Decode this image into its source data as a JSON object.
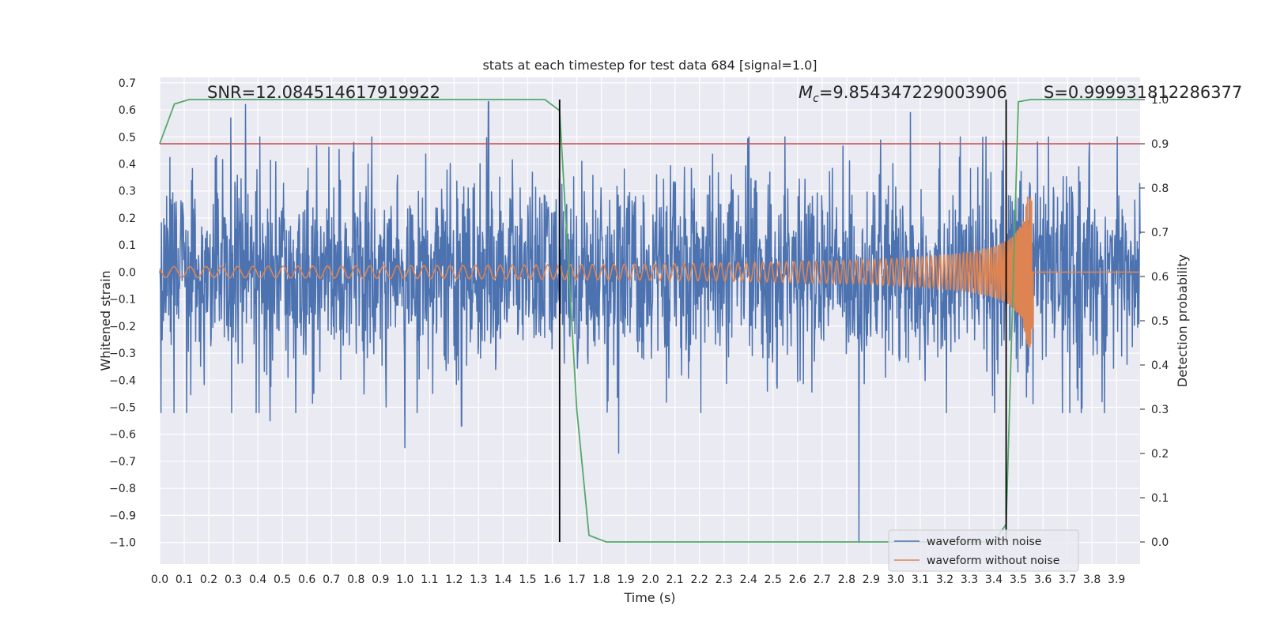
{
  "chart_data": {
    "type": "line",
    "title": "stats at each timestep for test data 684 [signal=1.0]",
    "xlabel": "Time (s)",
    "ylabel": "Whitened strain",
    "y2label": "Detection probability",
    "xlim": [
      0.0,
      3.996
    ],
    "ylim": [
      -1.08,
      0.72
    ],
    "y2lim": [
      -0.05,
      1.05
    ],
    "x_ticks": [
      0.0,
      0.1,
      0.2,
      0.3,
      0.4,
      0.5,
      0.6,
      0.7,
      0.8,
      0.9,
      1.0,
      1.1,
      1.2,
      1.3,
      1.4,
      1.5,
      1.6,
      1.7,
      1.8,
      1.9,
      2.0,
      2.1,
      2.2,
      2.3,
      2.4,
      2.5,
      2.6,
      2.7,
      2.8,
      2.9,
      3.0,
      3.1,
      3.2,
      3.3,
      3.4,
      3.5,
      3.6,
      3.7,
      3.8,
      3.9
    ],
    "y_ticks": [
      0.7,
      0.6,
      0.5,
      0.4,
      0.3,
      0.2,
      0.1,
      0.0,
      -0.1,
      -0.2,
      -0.3,
      -0.4,
      -0.5,
      -0.6,
      -0.7,
      -0.8,
      -0.9,
      -1.0
    ],
    "y_tick_labels": [
      "0.7",
      "0.6",
      "0.5",
      "0.4",
      "0.3",
      "0.2",
      "0.1",
      "0.0",
      "−0.1",
      "−0.2",
      "−0.3",
      "−0.4",
      "−0.5",
      "−0.6",
      "−0.7",
      "−0.8",
      "−0.9",
      "−1.0"
    ],
    "y2_ticks": [
      1.0,
      0.9,
      0.8,
      0.7,
      0.6,
      0.5,
      0.4,
      0.3,
      0.2,
      0.1,
      0.0
    ],
    "grid": true,
    "legend_position": "bottom-right",
    "annotations": {
      "snr": "SNR=12.084514617919922",
      "mc_symbol": "M",
      "mc_sub": "c",
      "mc_value": "=9.854347229003906",
      "s": "S=0.999931812286377"
    },
    "series": [
      {
        "name": "waveform with noise",
        "color": "#4c72b0",
        "description": "dense noisy strain, roughly within -0.5..0.5 with spikes",
        "amplitude_typical": 0.35,
        "spikes": [
          {
            "x": 0.35,
            "y": 0.62
          },
          {
            "x": 1.0,
            "y": -0.65
          },
          {
            "x": 1.34,
            "y": 0.63
          },
          {
            "x": 1.87,
            "y": -0.67
          },
          {
            "x": 2.85,
            "y": -1.0
          },
          {
            "x": 3.06,
            "y": 0.59
          },
          {
            "x": 0.29,
            "y": 0.57
          },
          {
            "x": 1.23,
            "y": -0.57
          },
          {
            "x": 0.45,
            "y": -0.55
          }
        ]
      },
      {
        "name": "waveform without noise",
        "color": "#dd8452",
        "description": "chirp with growing amplitude, merger near t=3.55 s",
        "chirp_end": 3.555,
        "amplitude_start": 0.02,
        "amplitude_peak": 0.28
      }
    ],
    "detection_probability": {
      "color": "#55a868",
      "axis": "right",
      "x": [
        0.0,
        0.06,
        0.12,
        1.3,
        1.57,
        1.63,
        1.7,
        1.75,
        1.82,
        2.5,
        3.4,
        3.45,
        3.5,
        3.55,
        3.996
      ],
      "y": [
        0.9,
        0.99,
        1.0,
        1.0,
        1.0,
        0.975,
        0.3,
        0.015,
        0.0,
        0.0,
        0.0,
        0.04,
        0.995,
        1.0,
        1.0
      ]
    },
    "threshold_line": {
      "color": "#c44e52",
      "axis": "right",
      "y": 0.9
    },
    "vertical_markers": {
      "color": "#000000",
      "x": [
        1.63,
        3.45
      ],
      "y2_range": [
        0.0,
        1.0
      ]
    }
  }
}
